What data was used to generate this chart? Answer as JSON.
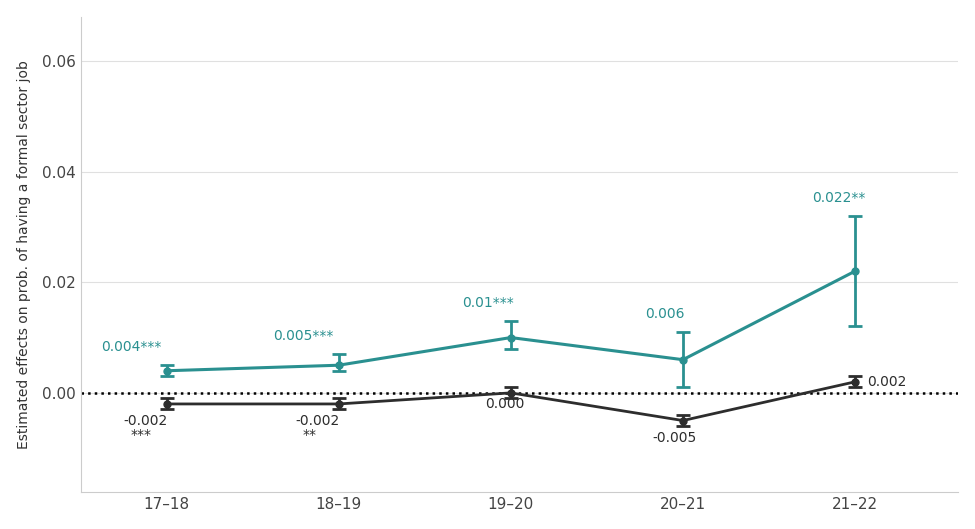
{
  "x_labels": [
    "17–18",
    "18–19",
    "19–20",
    "20–21",
    "21–22"
  ],
  "x_positions": [
    0,
    1,
    2,
    3,
    4
  ],
  "teal_values": [
    0.004,
    0.005,
    0.01,
    0.006,
    0.022
  ],
  "teal_ci_upper": [
    0.005,
    0.007,
    0.013,
    0.011,
    0.032
  ],
  "teal_ci_lower": [
    0.003,
    0.004,
    0.008,
    0.001,
    0.012
  ],
  "dark_values": [
    -0.002,
    -0.002,
    0.0,
    -0.005,
    0.002
  ],
  "dark_ci_upper": [
    -0.001,
    -0.001,
    0.001,
    -0.004,
    0.003
  ],
  "dark_ci_lower": [
    -0.003,
    -0.003,
    -0.001,
    -0.006,
    0.001
  ],
  "teal_labels": [
    "0.004***",
    "0.005***",
    "0.01***",
    "0.006",
    "0.022**"
  ],
  "dark_labels": [
    "-0.002",
    "-0.002",
    "0.000",
    "-0.005",
    "0.002"
  ],
  "dark_sig_labels": [
    "***",
    "**",
    "",
    "",
    ""
  ],
  "teal_color": "#2a9090",
  "dark_color": "#2d2d2d",
  "ylabel": "Estimated effects on prob. of having a formal sector job",
  "background_color": "#ffffff",
  "grid_color": "#e0e0e0",
  "label_fontsize": 10,
  "axis_label_fontsize": 10,
  "tick_fontsize": 11
}
